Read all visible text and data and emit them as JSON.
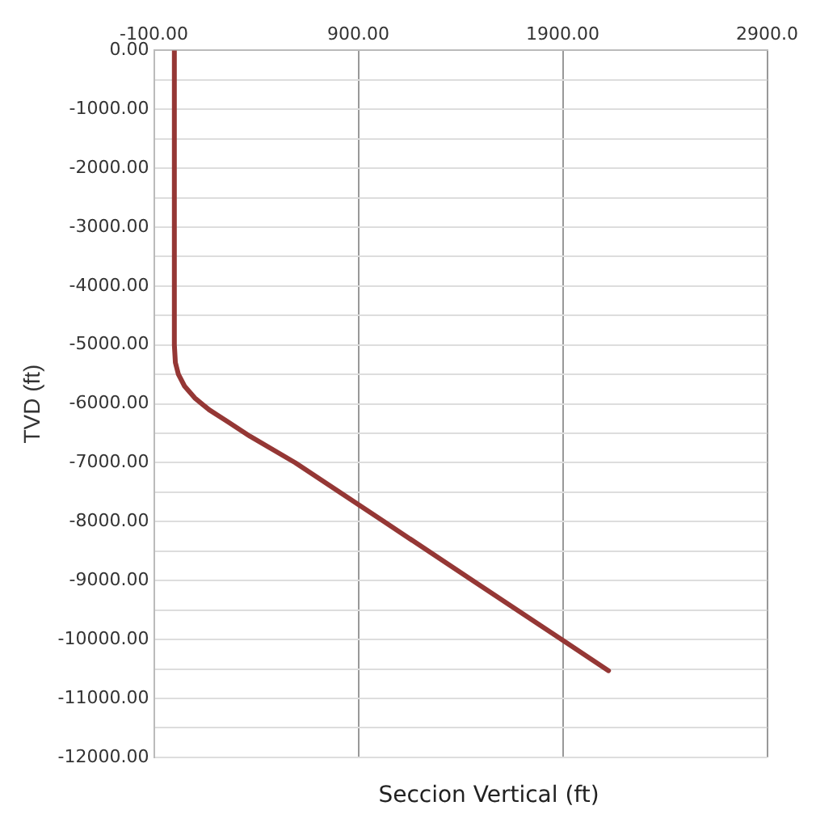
{
  "chart_data": {
    "type": "line",
    "xlabel": "Seccion Vertical (ft)",
    "ylabel": "TVD (ft)",
    "series": [
      {
        "color": "#953735",
        "x": [
          0,
          0,
          5,
          20,
          50,
          100,
          170,
          260,
          370,
          592,
          1026,
          1460,
          1894,
          2124
        ],
        "values": [
          0,
          -5000,
          -5300,
          -5500,
          -5700,
          -5900,
          -6100,
          -6300,
          -6550,
          -7000,
          -8000,
          -9000,
          -10000,
          -10530
        ]
      }
    ],
    "xlim": [
      -100,
      2900
    ],
    "xticks": [
      {
        "value": -100,
        "label": "-100.00"
      },
      {
        "value": 900,
        "label": "900.00"
      },
      {
        "value": 1900,
        "label": "1900.00"
      },
      {
        "value": 2900,
        "label": "2900.0"
      }
    ],
    "ylim": [
      -12000,
      0
    ],
    "yticks": [
      {
        "value": 0,
        "label": "0.00"
      },
      {
        "value": -500,
        "label": null
      },
      {
        "value": -1000,
        "label": "-1000.00"
      },
      {
        "value": -1500,
        "label": null
      },
      {
        "value": -2000,
        "label": "-2000.00"
      },
      {
        "value": -2500,
        "label": null
      },
      {
        "value": -3000,
        "label": "-3000.00"
      },
      {
        "value": -3500,
        "label": null
      },
      {
        "value": -4000,
        "label": "-4000.00"
      },
      {
        "value": -4500,
        "label": null
      },
      {
        "value": -5000,
        "label": "-5000.00"
      },
      {
        "value": -5500,
        "label": null
      },
      {
        "value": -6000,
        "label": "-6000.00"
      },
      {
        "value": -6500,
        "label": null
      },
      {
        "value": -7000,
        "label": "-7000.00"
      },
      {
        "value": -7500,
        "label": null
      },
      {
        "value": -8000,
        "label": "-8000.00"
      },
      {
        "value": -8500,
        "label": null
      },
      {
        "value": -9000,
        "label": "-9000.00"
      },
      {
        "value": -9500,
        "label": null
      },
      {
        "value": -10000,
        "label": "-10000.00"
      },
      {
        "value": -10500,
        "label": null
      },
      {
        "value": -11000,
        "label": "-11000.00"
      },
      {
        "value": -11500,
        "label": null
      },
      {
        "value": -12000,
        "label": "-12000.00"
      }
    ],
    "grid": true,
    "legend": false,
    "marker": "none",
    "line_style": "solid"
  }
}
